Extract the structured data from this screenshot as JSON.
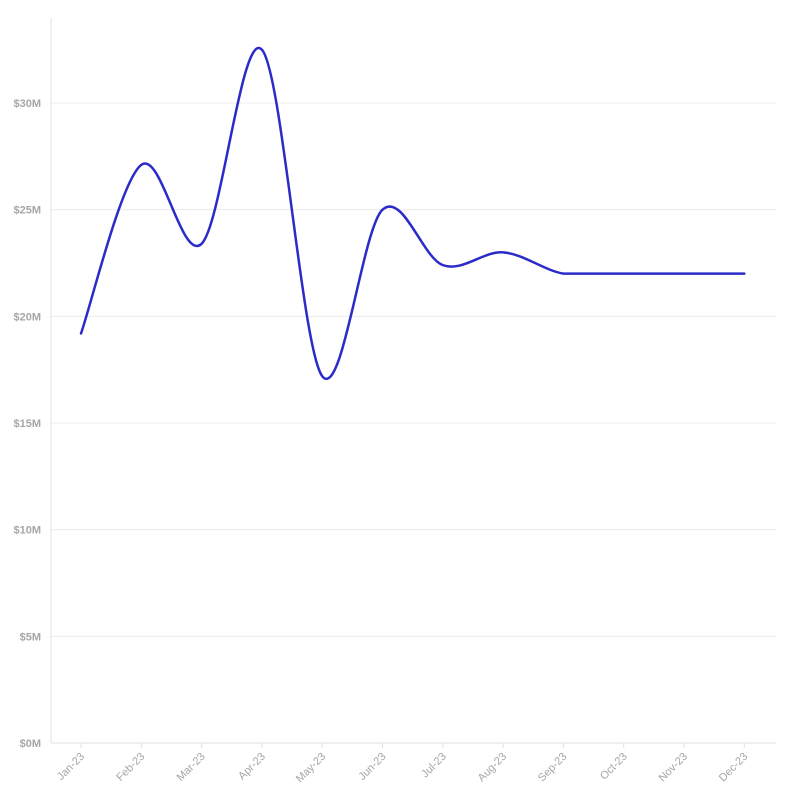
{
  "chart_data": {
    "type": "line",
    "title": "",
    "xlabel": "",
    "ylabel": "",
    "categories": [
      "Jan-23",
      "Feb-23",
      "Mar-23",
      "Apr-23",
      "May-23",
      "Jun-23",
      "Jul-23",
      "Aug-23",
      "Sep-23",
      "Oct-23",
      "Nov-23",
      "Dec-23"
    ],
    "series": [
      {
        "values": [
          19.2,
          27.1,
          23.4,
          32.5,
          17.2,
          25.0,
          22.4,
          23.0,
          22.0,
          22.0,
          22.0,
          22.0
        ]
      }
    ],
    "y_unit": "millions USD",
    "ylim": [
      0,
      34
    ],
    "yticks": [
      0,
      5,
      10,
      15,
      20,
      25,
      30
    ],
    "ytick_labels": [
      "$0M",
      "$5M",
      "$10M",
      "$15M",
      "$20M",
      "$25M",
      "$30M"
    ],
    "grid": "horizontal",
    "legend": "none",
    "line_color": "#2b2bc8",
    "grid_color": "#ececec",
    "axis_color": "#e0e0e0",
    "label_color": "#a6a6a6"
  }
}
